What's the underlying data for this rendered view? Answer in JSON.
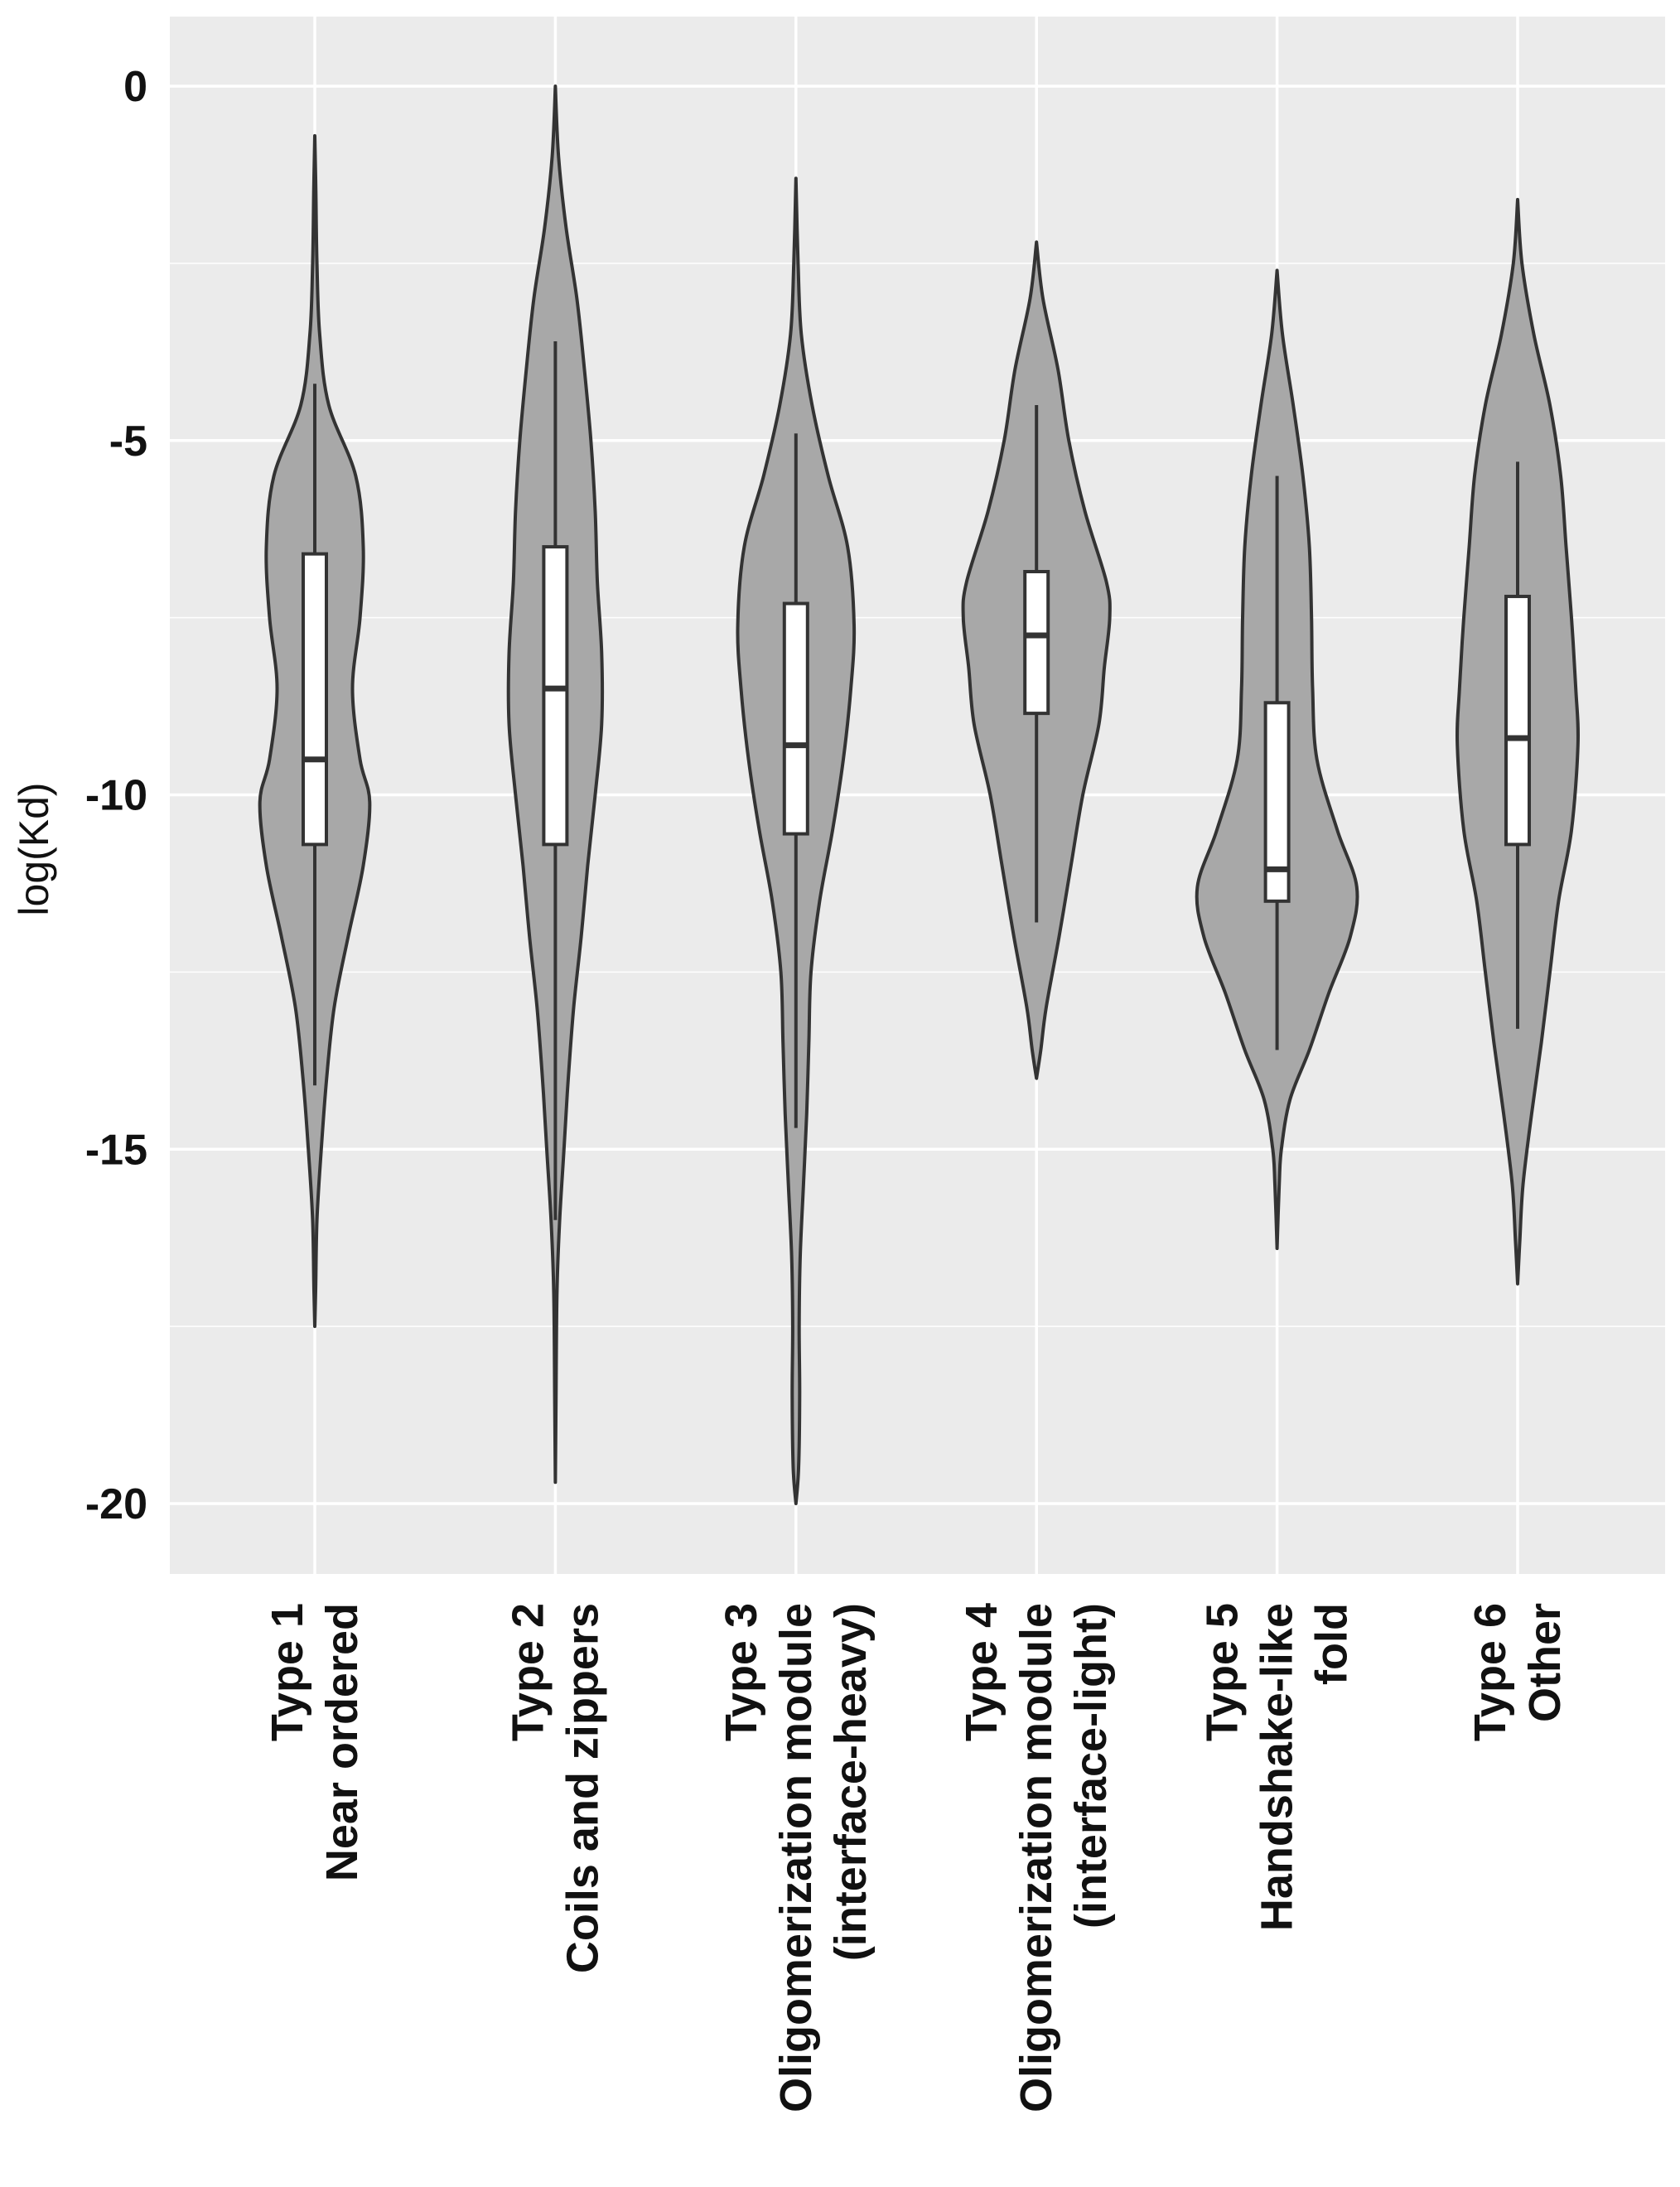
{
  "chart_data": {
    "type": "violin",
    "title": "",
    "xlabel": "",
    "ylabel": "log(Kd)",
    "ylim": [
      -21,
      1
    ],
    "yticks": [
      0,
      -5,
      -10,
      -15,
      -20
    ],
    "ytick_labels": [
      "0",
      "-5",
      "-10",
      "-15",
      "-20"
    ],
    "grid": true,
    "colors": {
      "panel": "#ebebeb",
      "grid": "#ffffff",
      "violin_fill": "#a8a8a8",
      "outline": "#333333",
      "box_fill": "#ffffff"
    },
    "categories": [
      {
        "lines": [
          "Type 1",
          "Near ordered"
        ]
      },
      {
        "lines": [
          "Type 2",
          "Coils and zippers"
        ]
      },
      {
        "lines": [
          "Type 3",
          "Oligomerization module",
          "(interface-heavy)"
        ]
      },
      {
        "lines": [
          "Type 4",
          "Oligomerization module",
          "(interface-light)"
        ]
      },
      {
        "lines": [
          "Type 5",
          "Handshake-like",
          "fold"
        ]
      },
      {
        "lines": [
          "Type 6",
          "Other"
        ]
      }
    ],
    "series": [
      {
        "name": "Type 1",
        "box": {
          "whisker_low": -14.1,
          "q1": -10.7,
          "median": -9.5,
          "q3": -6.6,
          "whisker_high": -4.2
        },
        "density": [
          [
            -0.7,
            0
          ],
          [
            -1.5,
            0.01
          ],
          [
            -2.5,
            0.02
          ],
          [
            -3.5,
            0.045
          ],
          [
            -4.5,
            0.13
          ],
          [
            -5.5,
            0.38
          ],
          [
            -6.5,
            0.45
          ],
          [
            -7.5,
            0.42
          ],
          [
            -8.5,
            0.35
          ],
          [
            -9.5,
            0.42
          ],
          [
            -10.1,
            0.51
          ],
          [
            -11,
            0.45
          ],
          [
            -12,
            0.31
          ],
          [
            -13,
            0.18
          ],
          [
            -14,
            0.11
          ],
          [
            -15,
            0.06
          ],
          [
            -16,
            0.02
          ],
          [
            -17,
            0.008
          ],
          [
            -17.5,
            0
          ]
        ]
      },
      {
        "name": "Type 2",
        "box": {
          "whisker_low": -16.0,
          "q1": -10.7,
          "median": -8.5,
          "q3": -6.5,
          "whisker_high": -3.6
        },
        "density": [
          [
            0,
            0
          ],
          [
            -1,
            0.03
          ],
          [
            -2,
            0.1
          ],
          [
            -3,
            0.2
          ],
          [
            -4,
            0.27
          ],
          [
            -5,
            0.33
          ],
          [
            -6,
            0.37
          ],
          [
            -7,
            0.39
          ],
          [
            -8,
            0.43
          ],
          [
            -9,
            0.43
          ],
          [
            -10,
            0.37
          ],
          [
            -11,
            0.3
          ],
          [
            -12,
            0.24
          ],
          [
            -13,
            0.17
          ],
          [
            -14,
            0.12
          ],
          [
            -15,
            0.08
          ],
          [
            -16,
            0.04
          ],
          [
            -17,
            0.015
          ],
          [
            -18.5,
            0.006
          ],
          [
            -19.7,
            0
          ]
        ]
      },
      {
        "name": "Type 3",
        "box": {
          "whisker_low": -14.7,
          "q1": -10.55,
          "median": -9.3,
          "q3": -7.3,
          "whisker_high": -4.9
        },
        "density": [
          [
            -1.3,
            0
          ],
          [
            -2.5,
            0.02
          ],
          [
            -3.5,
            0.05
          ],
          [
            -4.5,
            0.15
          ],
          [
            -5.5,
            0.3
          ],
          [
            -6.5,
            0.48
          ],
          [
            -7.6,
            0.54
          ],
          [
            -8.5,
            0.51
          ],
          [
            -9.5,
            0.44
          ],
          [
            -10.5,
            0.34
          ],
          [
            -11.5,
            0.22
          ],
          [
            -12.5,
            0.14
          ],
          [
            -13.5,
            0.12
          ],
          [
            -14.5,
            0.1
          ],
          [
            -15.5,
            0.07
          ],
          [
            -16.5,
            0.04
          ],
          [
            -17.5,
            0.03
          ],
          [
            -18.5,
            0.035
          ],
          [
            -19.5,
            0.025
          ],
          [
            -20,
            0
          ]
        ]
      },
      {
        "name": "Type 4",
        "box": {
          "whisker_low": -11.8,
          "q1": -8.85,
          "median": -7.75,
          "q3": -6.85,
          "whisker_high": -4.5
        },
        "density": [
          [
            -2.2,
            0
          ],
          [
            -3,
            0.06
          ],
          [
            -4,
            0.2
          ],
          [
            -5,
            0.3
          ],
          [
            -6,
            0.45
          ],
          [
            -7,
            0.65
          ],
          [
            -7.5,
            0.68
          ],
          [
            -8.2,
            0.63
          ],
          [
            -9,
            0.58
          ],
          [
            -10,
            0.43
          ],
          [
            -11,
            0.32
          ],
          [
            -12,
            0.21
          ],
          [
            -13,
            0.09
          ],
          [
            -13.6,
            0.04
          ],
          [
            -14,
            0
          ]
        ]
      },
      {
        "name": "Type 5",
        "box": {
          "whisker_low": -13.6,
          "q1": -11.5,
          "median": -11.05,
          "q3": -8.7,
          "whisker_high": -5.5
        },
        "density": [
          [
            -2.6,
            0
          ],
          [
            -3.5,
            0.05
          ],
          [
            -4.5,
            0.15
          ],
          [
            -5.5,
            0.24
          ],
          [
            -6.5,
            0.3
          ],
          [
            -7.5,
            0.32
          ],
          [
            -8.5,
            0.33
          ],
          [
            -9.5,
            0.37
          ],
          [
            -10.5,
            0.56
          ],
          [
            -11.3,
            0.74
          ],
          [
            -12,
            0.68
          ],
          [
            -12.8,
            0.48
          ],
          [
            -13.6,
            0.3
          ],
          [
            -14.3,
            0.12
          ],
          [
            -15,
            0.04
          ],
          [
            -15.5,
            0.02
          ],
          [
            -16.4,
            0
          ]
        ]
      },
      {
        "name": "Type 6",
        "box": {
          "whisker_low": -13.3,
          "q1": -10.7,
          "median": -9.2,
          "q3": -7.2,
          "whisker_high": -5.3
        },
        "density": [
          [
            -1.6,
            0
          ],
          [
            -2.5,
            0.04
          ],
          [
            -3.5,
            0.15
          ],
          [
            -4.5,
            0.3
          ],
          [
            -5.5,
            0.4
          ],
          [
            -6.5,
            0.45
          ],
          [
            -7.5,
            0.5
          ],
          [
            -8.5,
            0.54
          ],
          [
            -9.3,
            0.56
          ],
          [
            -10.5,
            0.5
          ],
          [
            -11.5,
            0.38
          ],
          [
            -12.5,
            0.3
          ],
          [
            -13.5,
            0.22
          ],
          [
            -14.5,
            0.13
          ],
          [
            -15.5,
            0.05
          ],
          [
            -16.3,
            0.02
          ],
          [
            -16.9,
            0
          ]
        ]
      }
    ]
  }
}
